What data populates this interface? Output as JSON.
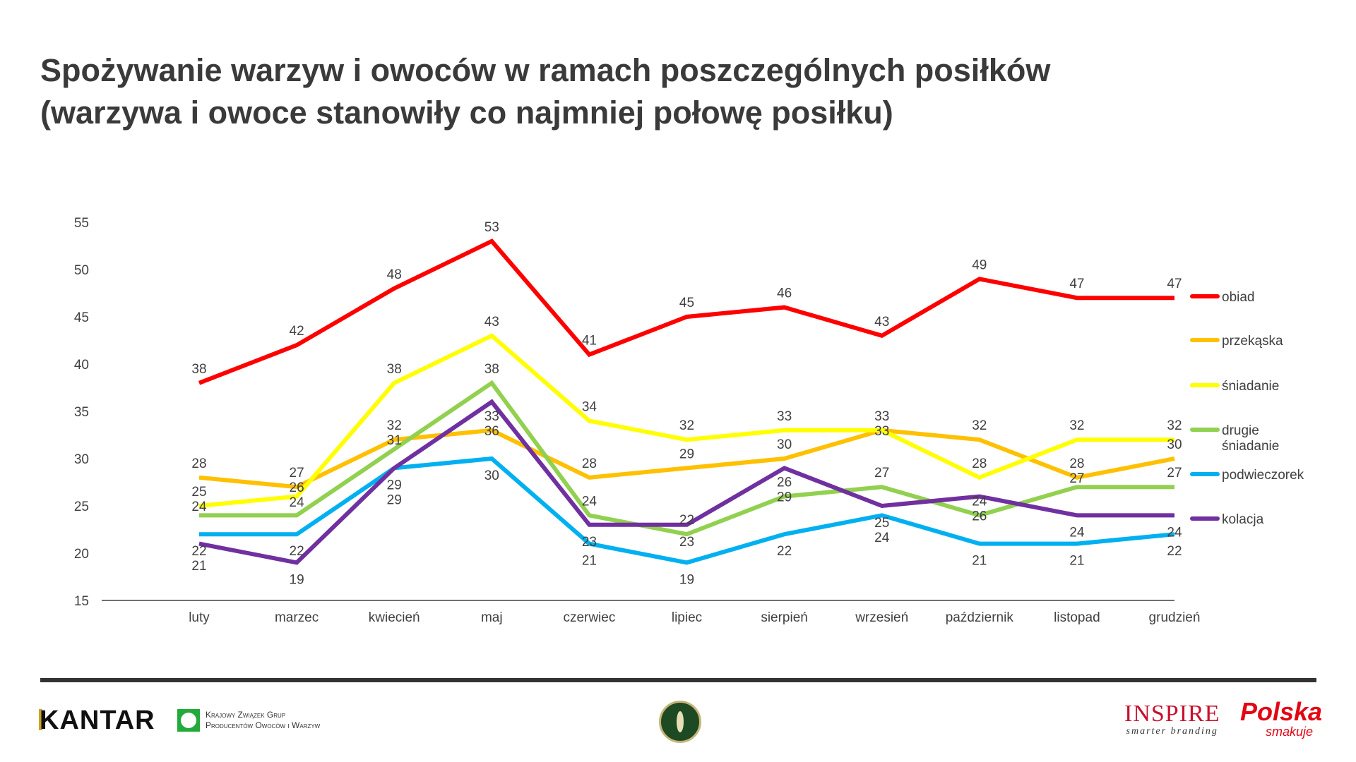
{
  "title": {
    "line1": "Spożywanie warzyw i owoców w ramach poszczególnych posiłków",
    "line2": "(warzywa i owoce stanowiły co najmniej połowę posiłku)"
  },
  "chart_data": {
    "type": "line",
    "title": "Spożywanie warzyw i owoców w ramach poszczególnych posiłków (warzywa i owoce stanowiły co najmniej połowę posiłku)",
    "categories": [
      "luty",
      "marzec",
      "kwiecień",
      "maj",
      "czerwiec",
      "lipiec",
      "sierpień",
      "wrzesień",
      "październik",
      "listopad",
      "grudzień"
    ],
    "ylim": [
      15,
      55
    ],
    "yticks": [
      15,
      20,
      25,
      30,
      35,
      40,
      45,
      50,
      55
    ],
    "grid": false,
    "legend_position": "right",
    "xlabel": "",
    "ylabel": "",
    "series": [
      {
        "name": "obiad",
        "color": "#ff0000",
        "values": [
          38,
          42,
          48,
          53,
          41,
          45,
          46,
          43,
          49,
          47,
          47
        ]
      },
      {
        "name": "przekąska",
        "color": "#ffc000",
        "values": [
          28,
          27,
          32,
          33,
          28,
          29,
          30,
          33,
          32,
          28,
          30
        ]
      },
      {
        "name": "śniadanie",
        "color": "#ffff00",
        "values": [
          25,
          26,
          38,
          43,
          34,
          32,
          33,
          33,
          28,
          32,
          32
        ]
      },
      {
        "name": "drugie śniadanie",
        "color": "#92d050",
        "values": [
          24,
          24,
          31,
          38,
          24,
          22,
          26,
          27,
          24,
          27,
          27
        ]
      },
      {
        "name": "podwieczorek",
        "color": "#00b0f0",
        "values": [
          22,
          22,
          29,
          30,
          21,
          19,
          22,
          24,
          21,
          21,
          22
        ]
      },
      {
        "name": "kolacja",
        "color": "#7030a0",
        "values": [
          21,
          19,
          29,
          36,
          23,
          23,
          29,
          25,
          26,
          24,
          24
        ]
      }
    ]
  },
  "legend": {
    "items": [
      "obiad",
      "przekąska",
      "śniadanie",
      "drugie",
      "śniadanie",
      "podwieczorek",
      "kolacja"
    ]
  },
  "footer": {
    "kantar": "KANTAR",
    "kzg_line1": "Krajowy Związek Grup",
    "kzg_line2": "Producentów Owoców i Warzyw",
    "inspire": "INSPIRE",
    "inspire_tagline": "smarter branding",
    "polska": "Polska",
    "polska_tagline": "smakuje"
  }
}
